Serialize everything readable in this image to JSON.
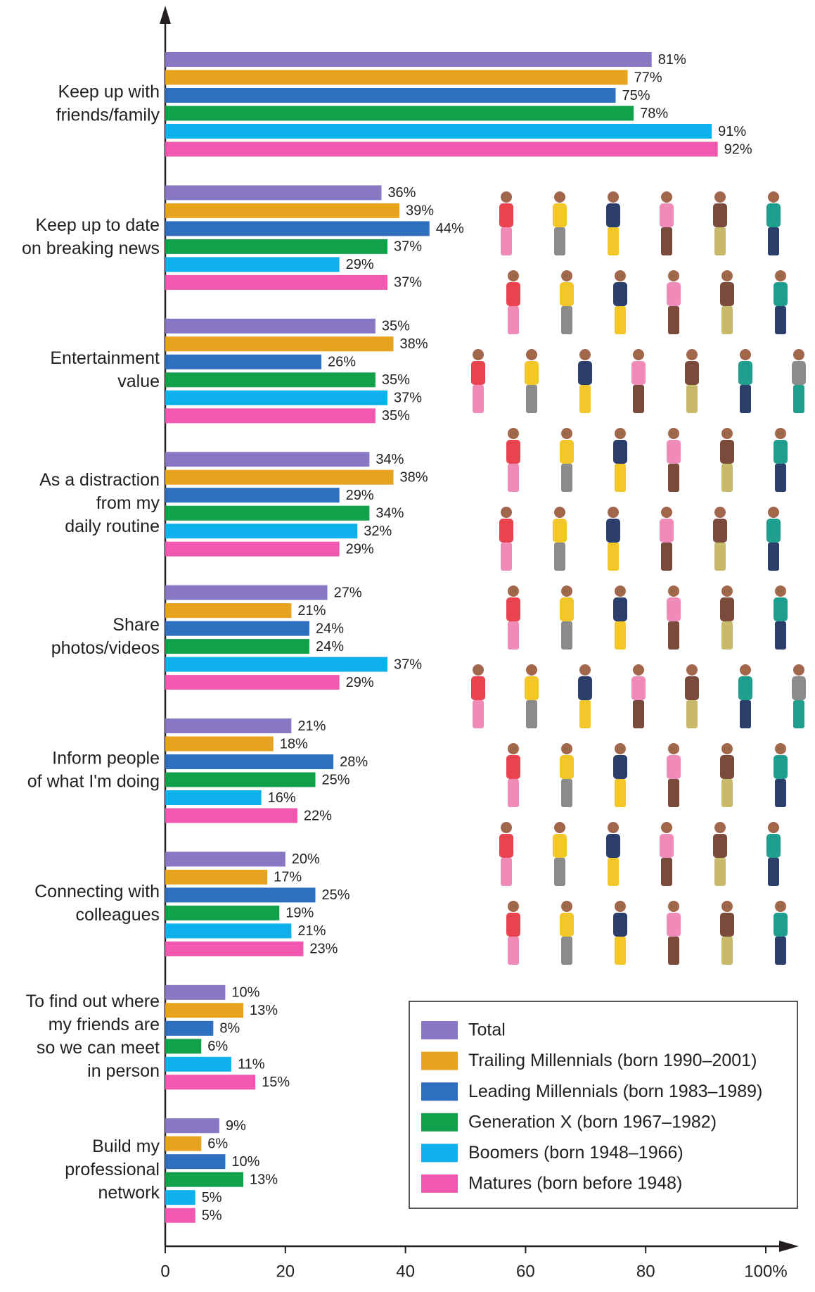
{
  "chart_data": {
    "type": "bar",
    "orientation": "horizontal",
    "categories": [
      [
        "Keep up with",
        "friends/family"
      ],
      [
        "Keep up to date",
        "on breaking news"
      ],
      [
        "Entertainment",
        "value"
      ],
      [
        "As a distraction",
        "from my",
        "daily routine"
      ],
      [
        "Share",
        "photos/videos"
      ],
      [
        "Inform people",
        "of what I'm doing"
      ],
      [
        "Connecting with",
        "colleagues"
      ],
      [
        "To find out where",
        "my friends are",
        "so we can meet",
        "in person"
      ],
      [
        "Build my",
        "professional",
        "network"
      ]
    ],
    "series": [
      {
        "name": "Total",
        "color": "#8878c3",
        "values": [
          81,
          36,
          35,
          34,
          27,
          21,
          20,
          10,
          9
        ],
        "value_labels": [
          "81%",
          "36%",
          "35%",
          "34%",
          "27%",
          "21%",
          "20%",
          "10%",
          "9%"
        ]
      },
      {
        "name": "Trailing Millennials (born 1990–2001)",
        "color": "#e8a31e",
        "values": [
          77,
          39,
          38,
          38,
          21,
          18,
          17,
          13,
          6
        ],
        "value_labels": [
          "77%",
          "39%",
          "38%",
          "38%",
          "21%",
          "18%",
          "17%",
          "13%",
          "6%"
        ]
      },
      {
        "name": "Leading Millennials (born 1983–1989)",
        "color": "#2f6fbf",
        "values": [
          75,
          44,
          26,
          29,
          24,
          28,
          25,
          8,
          10
        ],
        "value_labels": [
          "75%",
          "44%",
          "26%",
          "29%",
          "24%",
          "28%",
          "25%",
          "8%",
          "10%"
        ]
      },
      {
        "name": "Generation X (born 1967–1982)",
        "color": "#12a14b",
        "values": [
          78,
          37,
          35,
          34,
          24,
          25,
          19,
          6,
          13
        ],
        "value_labels": [
          "78%",
          "37%",
          "35%",
          "34%",
          "24%",
          "25%",
          "19%",
          "6%",
          "13%"
        ]
      },
      {
        "name": "Boomers (born 1948–1966)",
        "color": "#0fb1ec",
        "values": [
          91,
          29,
          37,
          32,
          37,
          16,
          21,
          11,
          5
        ],
        "value_labels": [
          "91%",
          "29%",
          "37%",
          "32%",
          "37%",
          "16%",
          "21%",
          "11%",
          "5%"
        ]
      },
      {
        "name": "Matures (born before 1948)",
        "color": "#f159b0",
        "values": [
          92,
          37,
          35,
          29,
          29,
          22,
          23,
          15,
          5
        ],
        "value_labels": [
          "92%",
          "37%",
          "35%",
          "29%",
          "29%",
          "22%",
          "23%",
          "15%",
          "5%"
        ]
      }
    ],
    "xlim": [
      0,
      100
    ],
    "xticks": [
      0,
      20,
      40,
      60,
      80,
      {
        "value": 100,
        "label": "100%"
      }
    ]
  }
}
